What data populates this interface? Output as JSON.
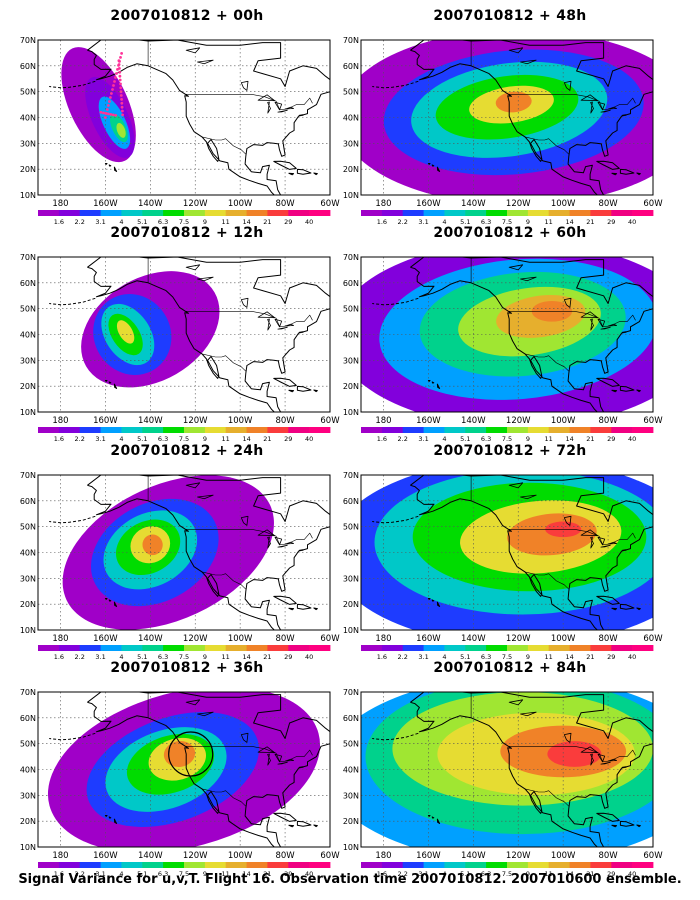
{
  "panels": [
    {
      "title": "2007010812 + 00h",
      "level": 0
    },
    {
      "title": "2007010812 + 12h",
      "level": 1
    },
    {
      "title": "2007010812 + 24h",
      "level": 2
    },
    {
      "title": "2007010812 + 36h",
      "level": 3
    },
    {
      "title": "2007010812 + 48h",
      "level": 4
    },
    {
      "title": "2007010812 + 60h",
      "level": 5
    },
    {
      "title": "2007010812 + 72h",
      "level": 6
    },
    {
      "title": "2007010812 + 84h",
      "level": 7
    }
  ],
  "map": {
    "lat_labels": [
      "70N",
      "60N",
      "50N",
      "40N",
      "30N",
      "20N",
      "10N"
    ],
    "lon_labels": [
      "180",
      "160W",
      "140W",
      "120W",
      "100W",
      "80W",
      "60W"
    ],
    "lat_range": [
      10,
      70
    ],
    "lon_range": [
      -190,
      -60
    ]
  },
  "colorbar": {
    "labels": [
      "1.6",
      "2.2",
      "3.1",
      "4",
      "5.1",
      "6.3",
      "7.5",
      "9",
      "11",
      "14",
      "21",
      "29",
      "40"
    ],
    "colors": [
      "#a000c8",
      "#8200dc",
      "#1e3cff",
      "#00a0ff",
      "#00c8c8",
      "#00d28c",
      "#00dc00",
      "#a0e632",
      "#e6dc32",
      "#e6af2d",
      "#f08228",
      "#fa3c3c",
      "#f00082",
      "#ff0080"
    ]
  },
  "markers": {
    "track_color": "#ff3399",
    "circle_panel_title": "2007010812 + 36h"
  },
  "caption": "Signal Variance for u,v,T. Flight 16. Observation time 2007010812. 2007010600 ensemble."
}
